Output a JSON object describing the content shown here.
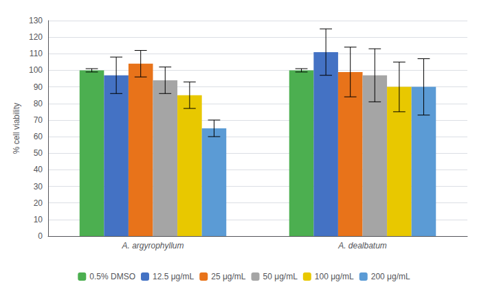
{
  "chart_data": {
    "type": "bar",
    "categories": [
      "A. argyrophyllum",
      "A. dealbatum"
    ],
    "series": [
      {
        "name": "0.5% DMSO",
        "color": "#4CAF50",
        "values": [
          100,
          100
        ],
        "errors": [
          1,
          1
        ]
      },
      {
        "name": "12.5 μg/mL",
        "color": "#4472C4",
        "values": [
          97,
          111
        ],
        "errors": [
          11,
          14
        ]
      },
      {
        "name": "25 μg/mL",
        "color": "#E8731A",
        "values": [
          104,
          99
        ],
        "errors": [
          8,
          15
        ]
      },
      {
        "name": "50 μg/mL",
        "color": "#A5A5A5",
        "values": [
          94,
          97
        ],
        "errors": [
          8,
          16
        ]
      },
      {
        "name": "100 μg/mL",
        "color": "#E8C800",
        "values": [
          85,
          90
        ],
        "errors": [
          8,
          15
        ]
      },
      {
        "name": "200 μg/mL",
        "color": "#5B9BD5",
        "values": [
          65,
          90
        ],
        "errors": [
          5,
          17
        ]
      }
    ],
    "ylabel": "% cell viability",
    "ylim": [
      0,
      130
    ],
    "yticks": [
      0,
      10,
      20,
      30,
      40,
      50,
      60,
      70,
      80,
      90,
      100,
      110,
      120,
      130
    ],
    "grid": true,
    "legend": "bottom"
  }
}
